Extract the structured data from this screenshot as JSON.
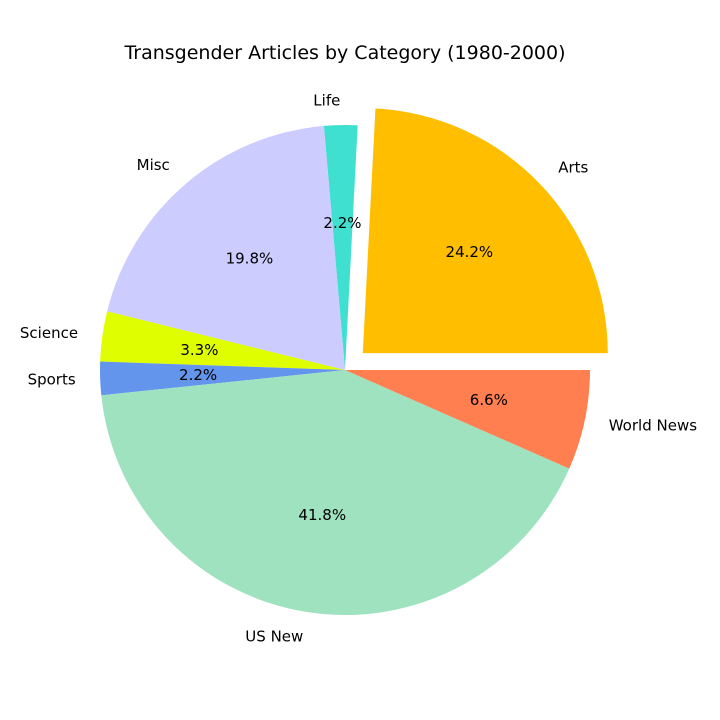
{
  "chart_data": {
    "type": "pie",
    "title": "Transgender Articles by Category (1980-2000)",
    "start_angle_deg": 0,
    "direction": "counterclockwise",
    "slices": [
      {
        "label": "Arts",
        "value": 24.2,
        "pct_label": "24.2%",
        "color": "#ffbf00",
        "exploded": true
      },
      {
        "label": "Life",
        "value": 2.2,
        "pct_label": "2.2%",
        "color": "#40e0d0",
        "exploded": false
      },
      {
        "label": "Misc",
        "value": 19.8,
        "pct_label": "19.8%",
        "color": "#ccccff",
        "exploded": false
      },
      {
        "label": "Science",
        "value": 3.3,
        "pct_label": "3.3%",
        "color": "#dfff00",
        "exploded": false
      },
      {
        "label": "Sports",
        "value": 2.2,
        "pct_label": "2.2%",
        "color": "#6495ed",
        "exploded": false
      },
      {
        "label": "US New",
        "value": 41.8,
        "pct_label": "41.8%",
        "color": "#9fe2bf",
        "exploded": false
      },
      {
        "label": "World News",
        "value": 6.6,
        "pct_label": "6.6%",
        "color": "#ff7f50",
        "exploded": false
      }
    ]
  }
}
